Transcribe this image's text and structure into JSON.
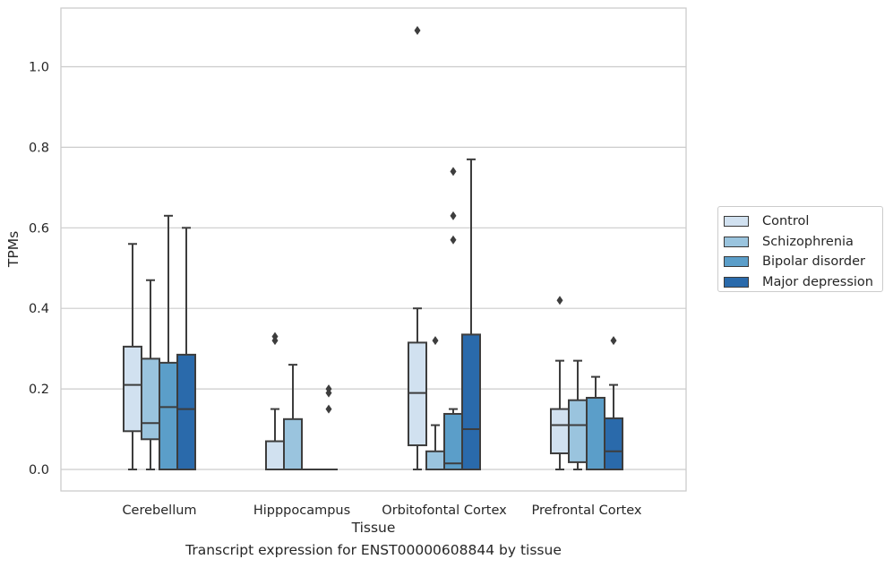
{
  "caption": "Transcript expression for ENST00000608844 by tissue",
  "chart_data": {
    "type": "box",
    "xlabel": "Tissue",
    "ylabel": "TPMs",
    "ylim": [
      -0.05,
      1.15
    ],
    "yticks": [
      "0.0",
      "0.2",
      "0.4",
      "0.6",
      "0.8",
      "1.0"
    ],
    "grid": "horizontal",
    "legend_position": "right",
    "categories": [
      "Cerebellum",
      "Hipppocampus",
      "Orbitofontal Cortex",
      "Prefrontal Cortex"
    ],
    "series": [
      {
        "name": "Control",
        "color": "#d1e1f0",
        "boxes": [
          {
            "whisker_low": 0.0,
            "q1": 0.095,
            "median": 0.21,
            "q3": 0.305,
            "whisker_high": 0.56,
            "outliers": []
          },
          {
            "whisker_low": 0.0,
            "q1": 0.0,
            "median": 0.0,
            "q3": 0.07,
            "whisker_high": 0.15,
            "outliers": [
              0.32,
              0.33
            ]
          },
          {
            "whisker_low": 0.0,
            "q1": 0.06,
            "median": 0.19,
            "q3": 0.315,
            "whisker_high": 0.4,
            "outliers": [
              1.09
            ]
          },
          {
            "whisker_low": 0.0,
            "q1": 0.04,
            "median": 0.11,
            "q3": 0.15,
            "whisker_high": 0.27,
            "outliers": [
              0.42
            ]
          }
        ]
      },
      {
        "name": "Schizophrenia",
        "color": "#9ac4de",
        "boxes": [
          {
            "whisker_low": 0.0,
            "q1": 0.075,
            "median": 0.115,
            "q3": 0.275,
            "whisker_high": 0.47,
            "outliers": []
          },
          {
            "whisker_low": 0.0,
            "q1": 0.0,
            "median": 0.0,
            "q3": 0.125,
            "whisker_high": 0.26,
            "outliers": []
          },
          {
            "whisker_low": 0.0,
            "q1": 0.0,
            "median": 0.0,
            "q3": 0.045,
            "whisker_high": 0.11,
            "outliers": [
              0.32
            ]
          },
          {
            "whisker_low": 0.0,
            "q1": 0.018,
            "median": 0.11,
            "q3": 0.172,
            "whisker_high": 0.27,
            "outliers": []
          }
        ]
      },
      {
        "name": "Bipolar disorder",
        "color": "#5b9ec9",
        "boxes": [
          {
            "whisker_low": 0.0,
            "q1": 0.0,
            "median": 0.155,
            "q3": 0.265,
            "whisker_high": 0.63,
            "outliers": []
          },
          {
            "whisker_low": 0.0,
            "q1": 0.0,
            "median": 0.0,
            "q3": 0.0,
            "whisker_high": 0.0,
            "outliers": []
          },
          {
            "whisker_low": 0.0,
            "q1": 0.0,
            "median": 0.015,
            "q3": 0.138,
            "whisker_high": 0.15,
            "outliers": [
              0.57,
              0.63,
              0.74
            ]
          },
          {
            "whisker_low": 0.0,
            "q1": 0.0,
            "median": 0.0,
            "q3": 0.178,
            "whisker_high": 0.23,
            "outliers": []
          }
        ]
      },
      {
        "name": "Major depression",
        "color": "#2a6aab",
        "boxes": [
          {
            "whisker_low": 0.0,
            "q1": 0.0,
            "median": 0.15,
            "q3": 0.285,
            "whisker_high": 0.6,
            "outliers": []
          },
          {
            "whisker_low": 0.0,
            "q1": 0.0,
            "median": 0.0,
            "q3": 0.0,
            "whisker_high": 0.0,
            "outliers": [
              0.15,
              0.19,
              0.2
            ]
          },
          {
            "whisker_low": 0.0,
            "q1": 0.0,
            "median": 0.1,
            "q3": 0.335,
            "whisker_high": 0.77,
            "outliers": []
          },
          {
            "whisker_low": 0.0,
            "q1": 0.0,
            "median": 0.045,
            "q3": 0.127,
            "whisker_high": 0.21,
            "outliers": [
              0.32
            ]
          }
        ]
      }
    ]
  }
}
